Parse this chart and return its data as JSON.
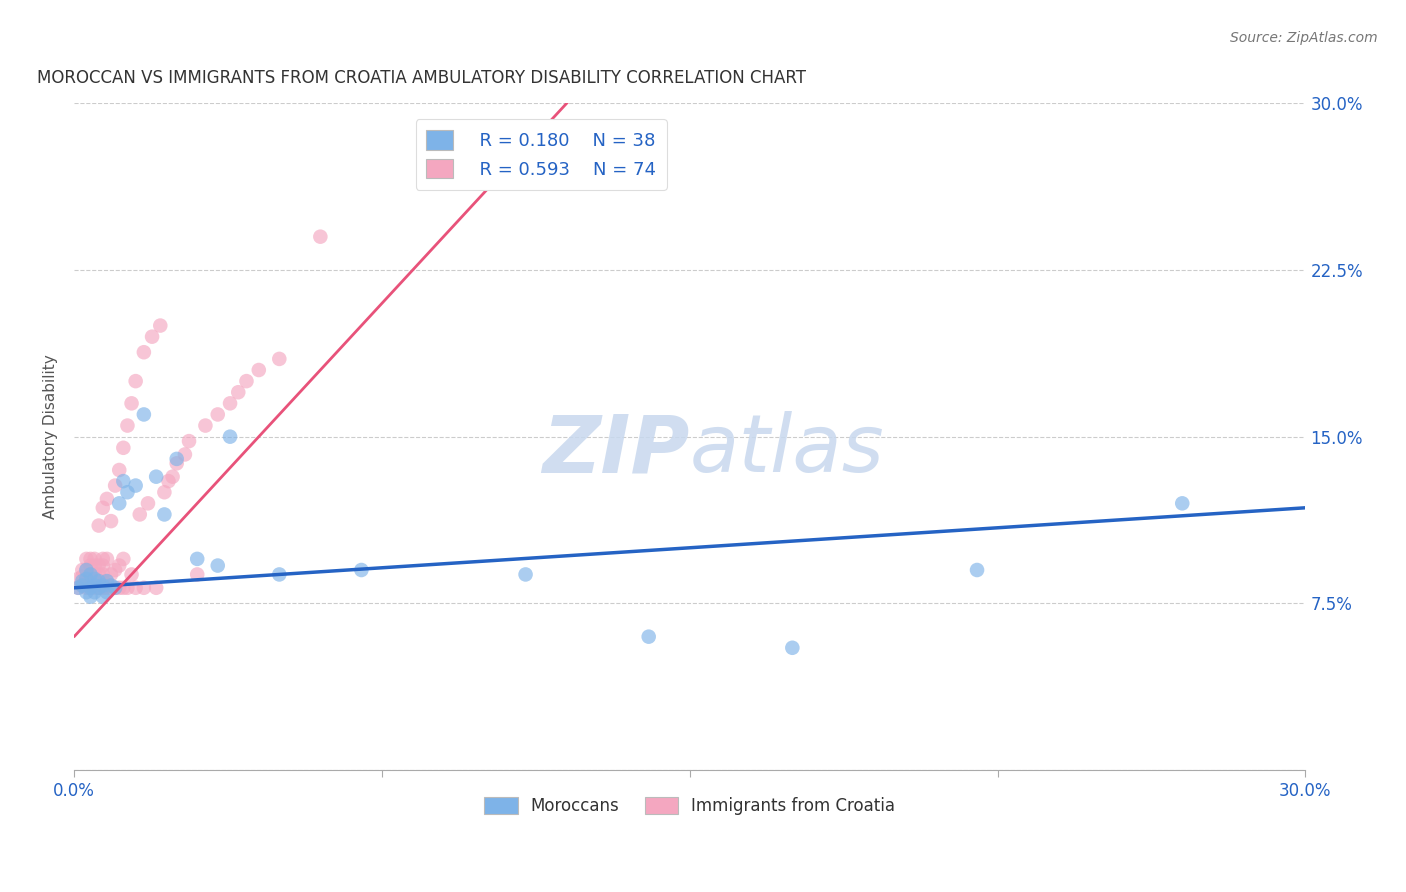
{
  "title": "MOROCCAN VS IMMIGRANTS FROM CROATIA AMBULATORY DISABILITY CORRELATION CHART",
  "source": "Source: ZipAtlas.com",
  "ylabel": "Ambulatory Disability",
  "xmin": 0.0,
  "xmax": 0.3,
  "ymin": 0.0,
  "ymax": 0.3,
  "yticks": [
    0.0,
    0.075,
    0.15,
    0.225,
    0.3
  ],
  "ytick_labels": [
    "",
    "7.5%",
    "15.0%",
    "22.5%",
    "30.0%"
  ],
  "xticks": [
    0.0,
    0.075,
    0.15,
    0.225,
    0.3
  ],
  "xtick_labels": [
    "0.0%",
    "",
    "",
    "",
    "30.0%"
  ],
  "legend_moroccan_R": "R = 0.180",
  "legend_moroccan_N": "N = 38",
  "legend_croatia_R": "R = 0.593",
  "legend_croatia_N": "N = 74",
  "moroccan_color": "#7EB3E8",
  "croatia_color": "#F4A7C0",
  "moroccan_line_color": "#2563C4",
  "croatia_line_color": "#E8527A",
  "moroccan_scatter_x": [
    0.001,
    0.002,
    0.002,
    0.003,
    0.003,
    0.003,
    0.004,
    0.004,
    0.004,
    0.005,
    0.005,
    0.005,
    0.006,
    0.006,
    0.007,
    0.007,
    0.008,
    0.008,
    0.009,
    0.01,
    0.011,
    0.012,
    0.013,
    0.015,
    0.017,
    0.02,
    0.022,
    0.025,
    0.03,
    0.035,
    0.038,
    0.05,
    0.07,
    0.11,
    0.14,
    0.175,
    0.22,
    0.27
  ],
  "moroccan_scatter_y": [
    0.082,
    0.085,
    0.083,
    0.08,
    0.086,
    0.09,
    0.082,
    0.088,
    0.078,
    0.083,
    0.086,
    0.08,
    0.082,
    0.085,
    0.083,
    0.078,
    0.08,
    0.085,
    0.083,
    0.082,
    0.12,
    0.13,
    0.125,
    0.128,
    0.16,
    0.132,
    0.115,
    0.14,
    0.095,
    0.092,
    0.15,
    0.088,
    0.09,
    0.088,
    0.06,
    0.055,
    0.09,
    0.12
  ],
  "croatia_scatter_x": [
    0.001,
    0.001,
    0.002,
    0.002,
    0.002,
    0.003,
    0.003,
    0.003,
    0.003,
    0.004,
    0.004,
    0.004,
    0.004,
    0.004,
    0.005,
    0.005,
    0.005,
    0.005,
    0.005,
    0.006,
    0.006,
    0.006,
    0.006,
    0.006,
    0.007,
    0.007,
    0.007,
    0.007,
    0.007,
    0.007,
    0.008,
    0.008,
    0.008,
    0.008,
    0.009,
    0.009,
    0.009,
    0.01,
    0.01,
    0.01,
    0.011,
    0.011,
    0.011,
    0.012,
    0.012,
    0.012,
    0.013,
    0.013,
    0.014,
    0.014,
    0.015,
    0.015,
    0.016,
    0.017,
    0.017,
    0.018,
    0.019,
    0.02,
    0.021,
    0.022,
    0.023,
    0.024,
    0.025,
    0.027,
    0.028,
    0.03,
    0.032,
    0.035,
    0.038,
    0.04,
    0.042,
    0.045,
    0.05,
    0.06
  ],
  "croatia_scatter_y": [
    0.082,
    0.086,
    0.083,
    0.087,
    0.09,
    0.082,
    0.085,
    0.09,
    0.095,
    0.083,
    0.085,
    0.088,
    0.092,
    0.095,
    0.082,
    0.085,
    0.088,
    0.092,
    0.095,
    0.082,
    0.085,
    0.088,
    0.092,
    0.11,
    0.082,
    0.085,
    0.088,
    0.092,
    0.095,
    0.118,
    0.082,
    0.085,
    0.095,
    0.122,
    0.082,
    0.088,
    0.112,
    0.082,
    0.09,
    0.128,
    0.082,
    0.092,
    0.135,
    0.082,
    0.095,
    0.145,
    0.082,
    0.155,
    0.088,
    0.165,
    0.082,
    0.175,
    0.115,
    0.082,
    0.188,
    0.12,
    0.195,
    0.082,
    0.2,
    0.125,
    0.13,
    0.132,
    0.138,
    0.142,
    0.148,
    0.088,
    0.155,
    0.16,
    0.165,
    0.17,
    0.175,
    0.18,
    0.185,
    0.24
  ],
  "moroccan_line_x0": 0.0,
  "moroccan_line_y0": 0.082,
  "moroccan_line_x1": 0.3,
  "moroccan_line_y1": 0.118,
  "croatia_line_x0": 0.0,
  "croatia_line_y0": 0.06,
  "croatia_line_x1": 0.12,
  "croatia_line_y1": 0.3
}
